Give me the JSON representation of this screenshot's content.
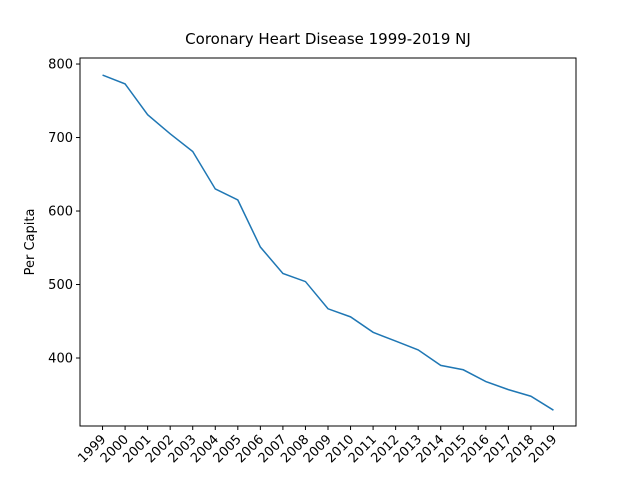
{
  "chart_data": {
    "type": "line",
    "title": "Coronary Heart Disease 1999-2019 NJ",
    "y_label": "Per Capita",
    "x": [
      1999,
      2000,
      2001,
      2002,
      2003,
      2004,
      2005,
      2006,
      2007,
      2008,
      2009,
      2010,
      2011,
      2012,
      2013,
      2014,
      2015,
      2016,
      2017,
      2018,
      2019
    ],
    "series": [
      {
        "name": "Per Capita",
        "color": "#1f77b4",
        "values": [
          785,
          773,
          731,
          705,
          681,
          630,
          615,
          551,
          515,
          504,
          467,
          456,
          435,
          423,
          411,
          390,
          384,
          368,
          357,
          348,
          329
        ]
      }
    ],
    "xlim": [
      1998,
      2020
    ],
    "xticks": [
      1999,
      2000,
      2001,
      2002,
      2003,
      2004,
      2005,
      2006,
      2007,
      2008,
      2009,
      2010,
      2011,
      2012,
      2013,
      2014,
      2015,
      2016,
      2017,
      2018,
      2019
    ],
    "ylim": [
      307.5,
      808.2
    ],
    "yticks": [
      400,
      500,
      600,
      700,
      800
    ]
  }
}
